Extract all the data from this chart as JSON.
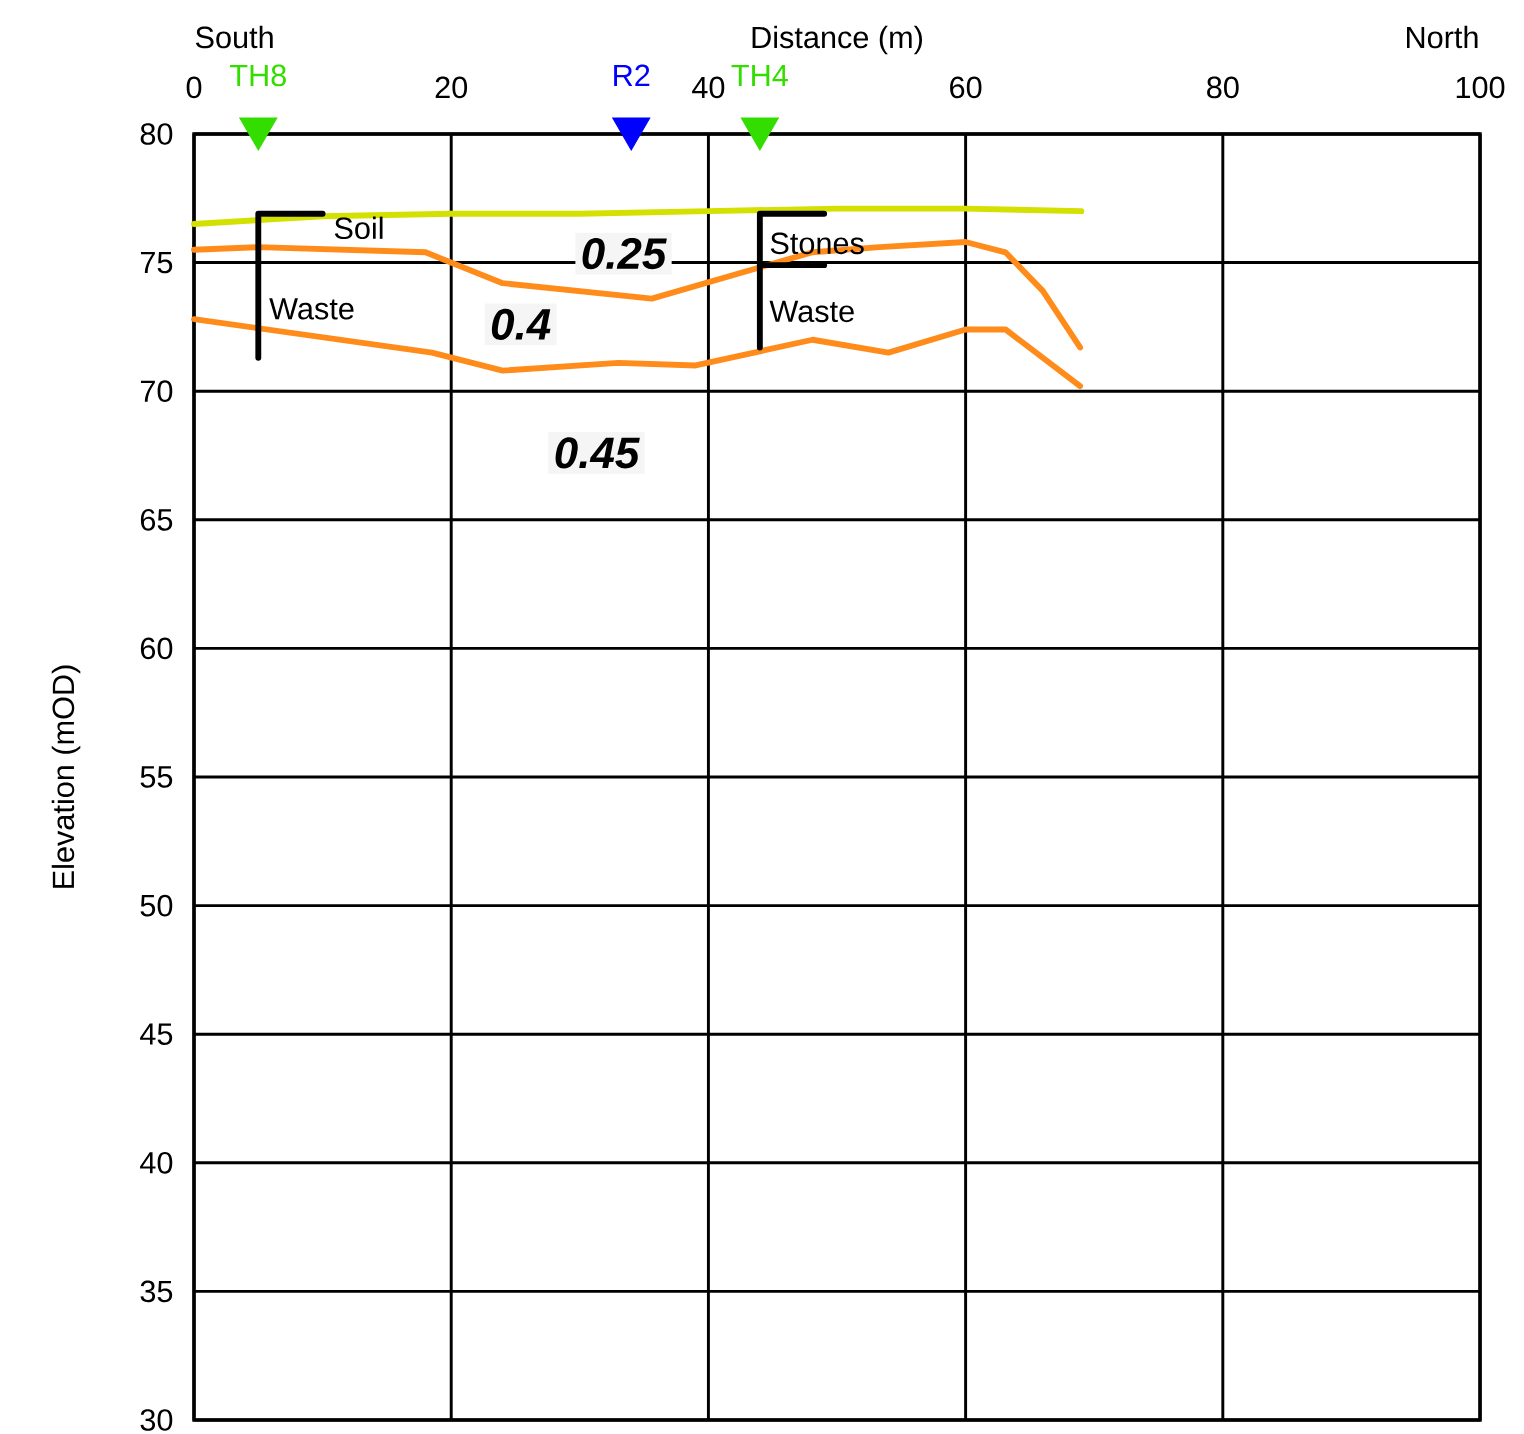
{
  "chart_data": {
    "type": "line",
    "xlabel": "Distance (m)",
    "ylabel": "Elevation (mOD)",
    "xlim": [
      0,
      100
    ],
    "xticks": [
      0,
      20,
      40,
      60,
      80,
      100
    ],
    "ylim": [
      30,
      80
    ],
    "yticks": [
      30,
      35,
      40,
      45,
      50,
      55,
      60,
      65,
      70,
      75,
      80
    ],
    "grid": true,
    "marker": "none",
    "series": [
      {
        "color": "#d4e000",
        "x": [
          0,
          10,
          20,
          30,
          40,
          50,
          60,
          69
        ],
        "values": [
          76.5,
          76.8,
          76.9,
          76.9,
          77.0,
          77.1,
          77.1,
          77.0
        ]
      },
      {
        "color": "#ff8c1a",
        "x": [
          0,
          5,
          18,
          24,
          35.6,
          43.9,
          48.1,
          53.3,
          60,
          63.1,
          66,
          68.9
        ],
        "values": [
          75.5,
          75.6,
          75.4,
          74.2,
          73.6,
          74.8,
          75.4,
          75.6,
          75.8,
          75.4,
          73.9,
          71.7
        ]
      },
      {
        "color": "#ff8c1a",
        "x": [
          0,
          18.5,
          24,
          33,
          39,
          48.1,
          54,
          60,
          63.1,
          68.9
        ],
        "values": [
          72.8,
          71.5,
          70.8,
          71.1,
          71.0,
          72.0,
          71.5,
          72.4,
          72.4,
          70.2
        ]
      },
      {
        "color": "#000000",
        "x": [
          10,
          5,
          5
        ],
        "values": [
          76.9,
          76.9,
          71.3
        ]
      },
      {
        "color": "#000000",
        "x": [
          49,
          44,
          44
        ],
        "values": [
          76.9,
          76.9,
          71.7
        ]
      },
      {
        "color": "#000000",
        "x": [
          44,
          49
        ],
        "values": [
          74.9,
          74.9
        ]
      },
      {
        "type": "scatter",
        "name": "TH8",
        "color": "#33dd00",
        "marker": "triangle",
        "x": [
          5
        ],
        "values": [
          80
        ]
      },
      {
        "type": "scatter",
        "name": "R2",
        "color": "#0000ff",
        "marker": "triangle",
        "x": [
          34
        ],
        "values": [
          80
        ]
      },
      {
        "type": "scatter",
        "name": "TH4",
        "color": "#33dd00",
        "marker": "triangle",
        "x": [
          44
        ],
        "values": [
          80
        ]
      }
    ],
    "annotations": [
      "South",
      "North",
      "0.25",
      "0.4",
      "0.45",
      "Soil",
      "Waste",
      "Stones",
      "Waste"
    ]
  }
}
